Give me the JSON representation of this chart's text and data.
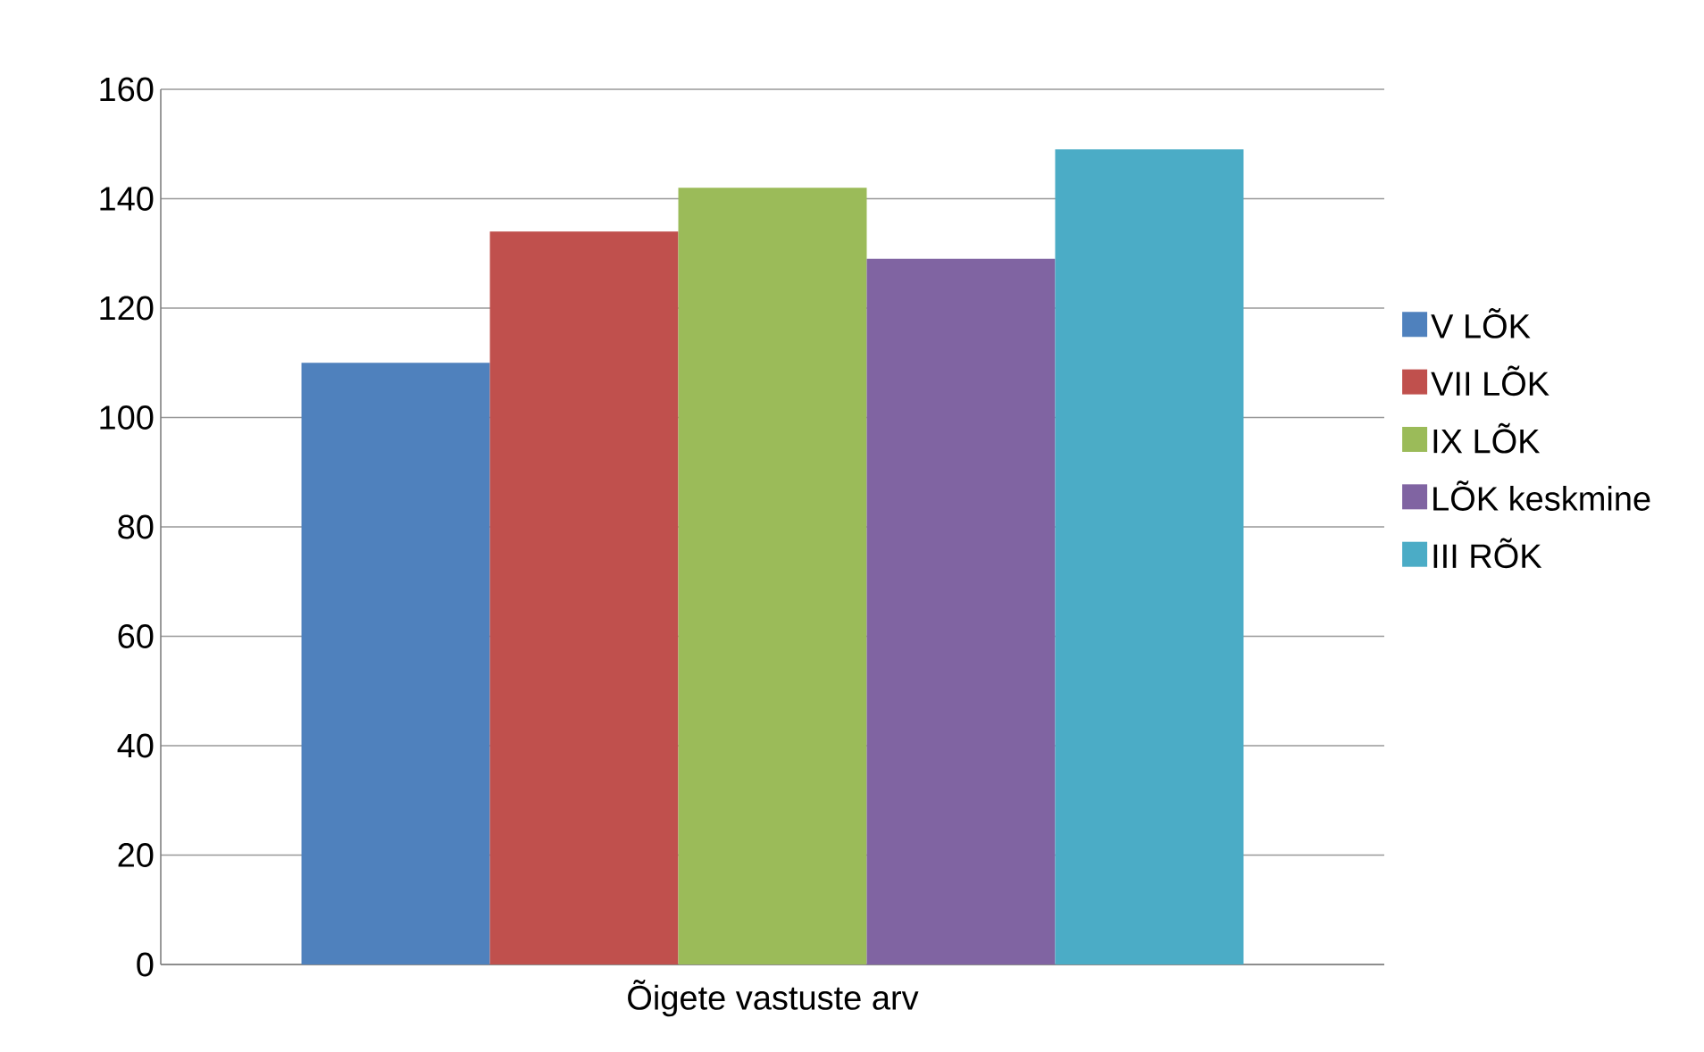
{
  "chart_data": {
    "type": "bar",
    "categories": [
      "Õigete vastuste arv"
    ],
    "series": [
      {
        "name": "V LÕK",
        "color": "#4f81bd",
        "values": [
          110
        ]
      },
      {
        "name": "VII LÕK",
        "color": "#c0504d",
        "values": [
          134
        ]
      },
      {
        "name": "IX LÕK",
        "color": "#9bbb59",
        "values": [
          142
        ]
      },
      {
        "name": "LÕK keskmine",
        "color": "#8064a2",
        "values": [
          129
        ]
      },
      {
        "name": "III RÕK",
        "color": "#4bacc6",
        "values": [
          149
        ]
      }
    ],
    "ylim": [
      0,
      160
    ],
    "yticks": [
      0,
      20,
      40,
      60,
      80,
      100,
      120,
      140,
      160
    ],
    "grid": "y",
    "legend": "right"
  }
}
